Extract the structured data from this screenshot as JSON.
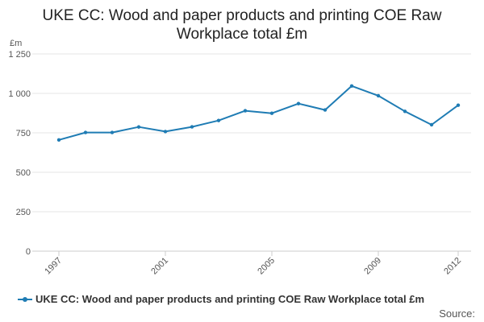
{
  "chart_data": {
    "type": "line",
    "title_lines": [
      "UKE CC: Wood and paper products and printing COE Raw",
      "Workplace total £m"
    ],
    "ylabel": "£m",
    "ylim": [
      0,
      1250
    ],
    "yticks": [
      0,
      250,
      500,
      750,
      1000,
      1250
    ],
    "ytick_labels": [
      "0",
      "250",
      "500",
      "750",
      "1 000",
      "1 250"
    ],
    "xlim": [
      1997,
      2012
    ],
    "xticks": [
      1997,
      2001,
      2005,
      2009,
      2012
    ],
    "xtick_labels": [
      "1997",
      "2001",
      "2005",
      "2009",
      "2012"
    ],
    "grid": true,
    "legend_position": "bottom-left",
    "color": "#1f7cb4",
    "series": [
      {
        "name": "UKE CC: Wood and paper products and printing COE Raw Workplace total £m",
        "x": [
          1997,
          1998,
          1999,
          2000,
          2001,
          2002,
          2003,
          2004,
          2005,
          2006,
          2007,
          2008,
          2009,
          2010,
          2011,
          2012
        ],
        "values": [
          705,
          752,
          752,
          787,
          758,
          788,
          828,
          890,
          874,
          935,
          895,
          1047,
          985,
          886,
          801,
          925
        ]
      }
    ]
  },
  "source_label": "Source:"
}
